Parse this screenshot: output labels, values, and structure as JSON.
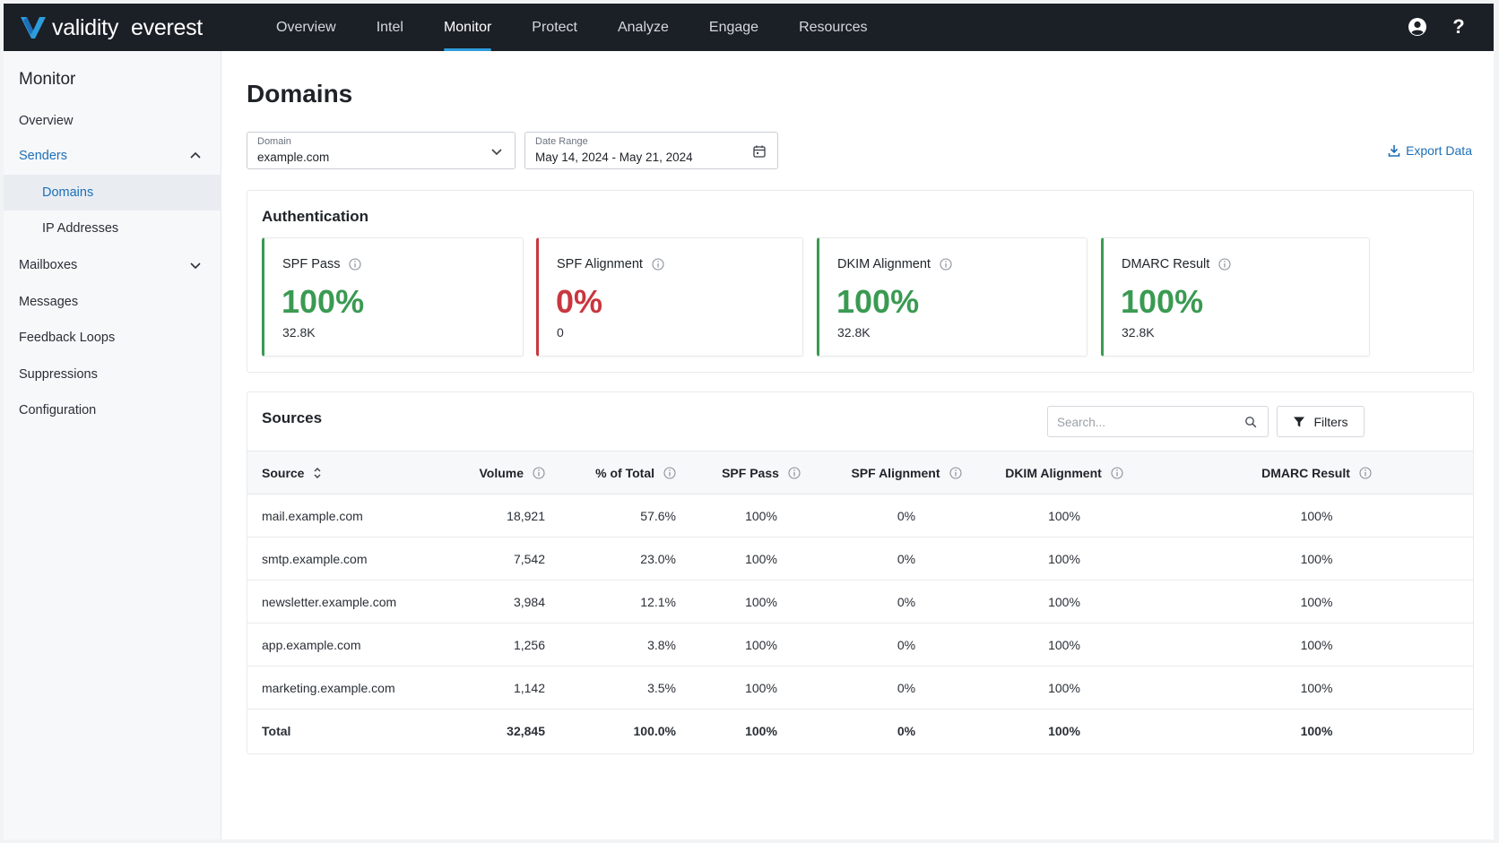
{
  "brand": {
    "name": "validity",
    "product": "everest",
    "accent": "#2d9cdb"
  },
  "nav": {
    "links": [
      "Overview",
      "Intel",
      "Monitor",
      "Protect",
      "Analyze",
      "Engage",
      "Resources"
    ],
    "active": "Monitor",
    "help_label": "?"
  },
  "sidebar": {
    "title": "Monitor",
    "items": [
      "Overview",
      "Senders",
      "Domains",
      "IP Addresses",
      "Mailboxes",
      "Messages",
      "Feedback Loops",
      "Suppressions",
      "Configuration"
    ]
  },
  "page": {
    "title": "Domains"
  },
  "filters": {
    "domain_label": "Domain",
    "domain_value": "example.com",
    "date_label": "Date Range",
    "date_value": "May 14, 2024 - May 21, 2024",
    "export_label": "Export Data"
  },
  "authentication": {
    "title": "Authentication",
    "metrics": [
      {
        "label": "SPF Pass",
        "value": "100%",
        "count": "32.8K",
        "status": "green"
      },
      {
        "label": "SPF Alignment",
        "value": "0%",
        "count": "0",
        "status": "red"
      },
      {
        "label": "DKIM Alignment",
        "value": "100%",
        "count": "32.8K",
        "status": "green"
      },
      {
        "label": "DMARC Result",
        "value": "100%",
        "count": "32.8K",
        "status": "green"
      }
    ]
  },
  "sources": {
    "title": "Sources",
    "search_placeholder": "Search...",
    "filters_label": "Filters",
    "columns": [
      "Source",
      "Volume",
      "% of Total",
      "SPF Pass",
      "SPF Alignment",
      "DKIM Alignment",
      "DMARC Result"
    ],
    "rows": [
      [
        "mail.example.com",
        "18,921",
        "57.6%",
        "100%",
        "0%",
        "100%",
        "100%"
      ],
      [
        "smtp.example.com",
        "7,542",
        "23.0%",
        "100%",
        "0%",
        "100%",
        "100%"
      ],
      [
        "newsletter.example.com",
        "3,984",
        "12.1%",
        "100%",
        "0%",
        "100%",
        "100%"
      ],
      [
        "app.example.com",
        "1,256",
        "3.8%",
        "100%",
        "0%",
        "100%",
        "100%"
      ],
      [
        "marketing.example.com",
        "1,142",
        "3.5%",
        "100%",
        "0%",
        "100%",
        "100%"
      ]
    ],
    "total": [
      "Total",
      "32,845",
      "100.0%",
      "100%",
      "0%",
      "100%",
      "100%"
    ]
  },
  "colors": {
    "green": "#3a9a52",
    "red": "#c9373f",
    "link": "#1d6fb8",
    "nav_bg": "#1b1f26"
  }
}
